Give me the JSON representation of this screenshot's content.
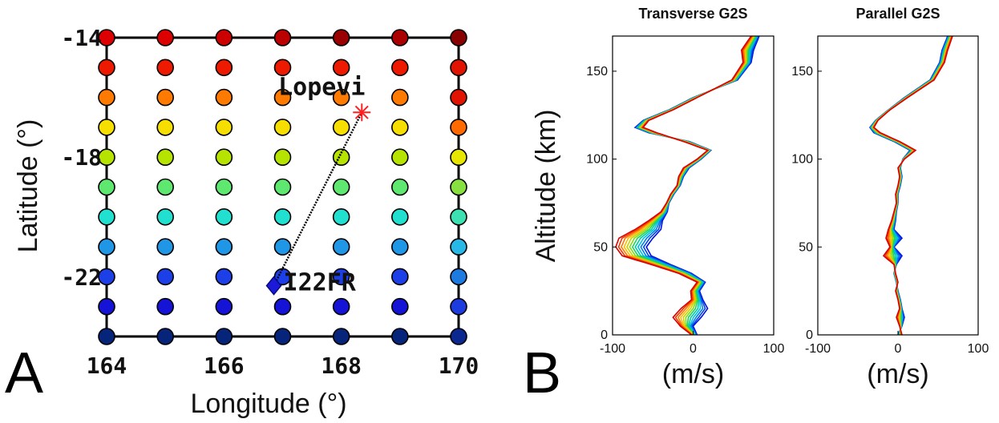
{
  "figure": {
    "panel_a_letter": "A",
    "panel_b_letter": "B"
  },
  "chart_data": [
    {
      "type": "scatter",
      "panel": "A",
      "xlabel": "Longitude (°)",
      "ylabel": "Latitude (°)",
      "xlim": [
        164,
        170
      ],
      "ylim": [
        -24,
        -14
      ],
      "xticks": [
        164,
        166,
        168,
        170
      ],
      "xtick_labels": [
        "164",
        "166",
        "168",
        "170"
      ],
      "yticks": [
        -14,
        -18,
        -22
      ],
      "ytick_labels": [
        "-14",
        "-18",
        "-22"
      ],
      "grid": false,
      "grid_points": {
        "lons": [
          164,
          165,
          166,
          167,
          168,
          169,
          170
        ],
        "lats": [
          -14,
          -15,
          -16,
          -17,
          -18,
          -19,
          -20,
          -21,
          -22,
          -23,
          -24
        ],
        "row_colors": [
          "#d80000",
          "#ee1a00",
          "#ff7a00",
          "#f6de00",
          "#b6e300",
          "#5fe870",
          "#22e0d0",
          "#1f96e6",
          "#1d3fe8",
          "#1513d6",
          "#06247a"
        ],
        "top_row_colors": [
          "#dd0000",
          "#dd0000",
          "#cc0000",
          "#bb0000",
          "#990000",
          "#aa0000",
          "#880000"
        ],
        "east_column_colors": [
          "#880000",
          "#e01400",
          "#e01400",
          "#ff6a00",
          "#e6e600",
          "#88e040",
          "#3de0b0",
          "#27b8e8",
          "#1c7ae0",
          "#1c3ce0",
          "#0a2890"
        ]
      },
      "markers": [
        {
          "name": "Lopevi",
          "lon": 168.35,
          "lat": -16.5,
          "symbol": "asterisk",
          "color": "#ff2020"
        },
        {
          "name": "I22FR",
          "lon": 166.85,
          "lat": -22.3,
          "symbol": "diamond",
          "color": "#1a1ad8"
        }
      ],
      "path": {
        "from": "I22FR",
        "to": "Lopevi",
        "style": "dotted",
        "color": "#000000"
      }
    },
    {
      "type": "line",
      "panel": "B",
      "title": "Transverse G2S",
      "xlabel": "(m/s)",
      "ylabel": "Altitude (km)",
      "xlim": [
        -100,
        100
      ],
      "ylim": [
        0,
        170
      ],
      "xticks": [
        -100,
        0,
        100
      ],
      "xtick_labels": [
        "-100",
        "0",
        "100"
      ],
      "yticks": [
        0,
        50,
        100,
        150
      ],
      "ytick_labels": [
        "0",
        "50",
        "100",
        "150"
      ],
      "series_count": 12,
      "color_ramp": [
        "#d80000",
        "#ff5a00",
        "#ffc400",
        "#9ae000",
        "#00d070",
        "#00c8e0",
        "#0060f0",
        "#0010e0"
      ],
      "profile_red": {
        "alt": [
          0,
          5,
          10,
          15,
          20,
          25,
          30,
          35,
          40,
          45,
          50,
          55,
          60,
          65,
          70,
          75,
          80,
          85,
          90,
          95,
          100,
          105,
          110,
          115,
          118,
          122,
          128,
          135,
          145,
          155,
          162,
          170
        ],
        "val": [
          -2,
          -16,
          -25,
          -15,
          -2,
          -3,
          5,
          -18,
          -52,
          -88,
          -96,
          -92,
          -72,
          -55,
          -40,
          -33,
          -28,
          -20,
          -18,
          -12,
          5,
          18,
          -12,
          -45,
          -62,
          -55,
          -25,
          5,
          48,
          62,
          60,
          72
        ]
      },
      "profile_blue": {
        "alt": [
          0,
          5,
          10,
          15,
          20,
          25,
          30,
          35,
          40,
          45,
          50,
          55,
          60,
          65,
          70,
          75,
          80,
          85,
          90,
          95,
          100,
          105,
          110,
          115,
          118,
          122,
          128,
          135,
          145,
          155,
          162,
          170
        ],
        "val": [
          5,
          0,
          10,
          18,
          12,
          8,
          15,
          -2,
          -28,
          -52,
          -58,
          -50,
          -40,
          -38,
          -32,
          -30,
          -24,
          -16,
          -12,
          -5,
          10,
          22,
          -5,
          -55,
          -72,
          -62,
          -30,
          0,
          55,
          72,
          75,
          82
        ]
      }
    },
    {
      "type": "line",
      "panel": "B",
      "title": "Parallel G2S",
      "xlabel": "(m/s)",
      "ylabel": "",
      "xlim": [
        -100,
        100
      ],
      "ylim": [
        0,
        170
      ],
      "xticks": [
        -100,
        0,
        100
      ],
      "xtick_labels": [
        "-100",
        "0",
        "100"
      ],
      "yticks": [
        0,
        50,
        100,
        150
      ],
      "ytick_labels": [
        "0",
        "50",
        "100",
        "150"
      ],
      "series_count": 12,
      "color_ramp": [
        "#d80000",
        "#ff5a00",
        "#ffc400",
        "#9ae000",
        "#00d070",
        "#00c8e0",
        "#0060f0",
        "#0010e0"
      ],
      "profile_red": {
        "alt": [
          0,
          5,
          10,
          15,
          20,
          25,
          30,
          35,
          40,
          45,
          50,
          55,
          60,
          65,
          70,
          75,
          80,
          85,
          90,
          95,
          100,
          105,
          110,
          115,
          118,
          122,
          128,
          135,
          145,
          155,
          162,
          170
        ],
        "val": [
          5,
          2,
          -2,
          2,
          0,
          -3,
          0,
          -3,
          -5,
          -18,
          -10,
          -15,
          -12,
          -8,
          -5,
          -2,
          -3,
          0,
          2,
          0,
          8,
          22,
          2,
          -22,
          -30,
          -25,
          -10,
          12,
          45,
          58,
          62,
          68
        ]
      },
      "profile_blue": {
        "alt": [
          0,
          5,
          10,
          15,
          20,
          25,
          30,
          35,
          40,
          45,
          50,
          55,
          60,
          65,
          70,
          75,
          80,
          85,
          90,
          95,
          100,
          105,
          110,
          115,
          118,
          122,
          128,
          135,
          145,
          155,
          162,
          170
        ],
        "val": [
          0,
          5,
          8,
          5,
          3,
          0,
          -2,
          -5,
          -2,
          5,
          -5,
          5,
          -5,
          -3,
          -2,
          0,
          0,
          3,
          5,
          3,
          6,
          15,
          -5,
          -30,
          -35,
          -28,
          -12,
          8,
          40,
          52,
          55,
          62
        ]
      }
    }
  ]
}
